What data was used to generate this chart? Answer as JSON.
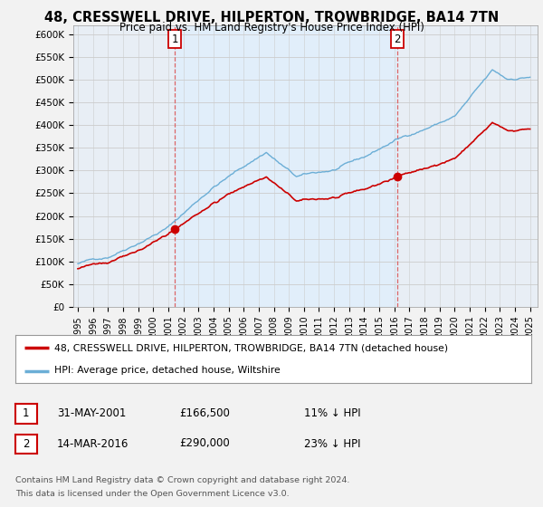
{
  "title": "48, CRESSWELL DRIVE, HILPERTON, TROWBRIDGE, BA14 7TN",
  "subtitle": "Price paid vs. HM Land Registry's House Price Index (HPI)",
  "ylabel_ticks": [
    "£0",
    "£50K",
    "£100K",
    "£150K",
    "£200K",
    "£250K",
    "£300K",
    "£350K",
    "£400K",
    "£450K",
    "£500K",
    "£550K",
    "£600K"
  ],
  "ylim": [
    0,
    620000
  ],
  "xlim_start": 1994.7,
  "xlim_end": 2025.5,
  "transaction1": {
    "date": "31-MAY-2001",
    "price": 166500,
    "label": "1",
    "x": 2001.42
  },
  "transaction2": {
    "date": "14-MAR-2016",
    "price": 290000,
    "label": "2",
    "x": 2016.2
  },
  "legend_property": "48, CRESSWELL DRIVE, HILPERTON, TROWBRIDGE, BA14 7TN (detached house)",
  "legend_hpi": "HPI: Average price, detached house, Wiltshire",
  "footnote1": "Contains HM Land Registry data © Crown copyright and database right 2024.",
  "footnote2": "This data is licensed under the Open Government Licence v3.0.",
  "table_row1": [
    "1",
    "31-MAY-2001",
    "£166,500",
    "11% ↓ HPI"
  ],
  "table_row2": [
    "2",
    "14-MAR-2016",
    "£290,000",
    "23% ↓ HPI"
  ],
  "hpi_color": "#6baed6",
  "property_color": "#cc0000",
  "dashed_color": "#dd6666",
  "shade_color": "#ddeeff",
  "background_color": "#f2f2f2",
  "plot_background": "#e8eef5"
}
